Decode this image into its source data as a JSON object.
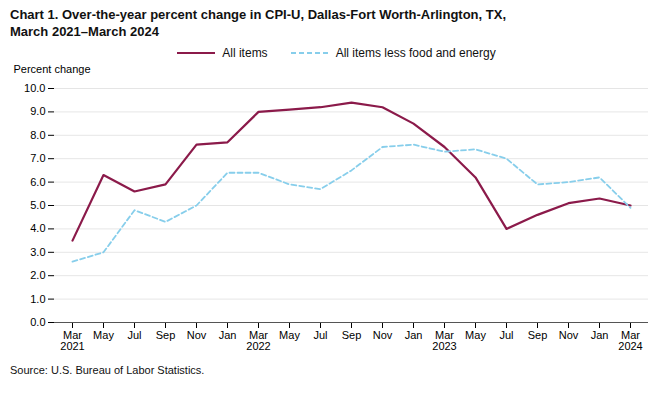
{
  "chart_data": {
    "type": "line",
    "title": "Chart 1. Over-the-year percent change in CPI-U, Dallas-Fort Worth-Arlington, TX,",
    "subtitle": "March 2021–March 2024",
    "y_label": "Percent change",
    "source": "Source: U.S. Bureau of Labor Statistics.",
    "categories": [
      "Mar\n2021",
      "May",
      "Jul",
      "Sep",
      "Nov",
      "Jan",
      "Mar\n2022",
      "May",
      "Jul",
      "Sep",
      "Nov",
      "Jan",
      "Mar\n2023",
      "May",
      "Jul",
      "Sep",
      "Nov",
      "Jan",
      "Mar\n2024"
    ],
    "series": [
      {
        "name": "All items",
        "color": "#8B1A4A",
        "line_style": "solid",
        "values": [
          3.5,
          6.3,
          5.6,
          5.9,
          7.6,
          7.7,
          9.0,
          9.1,
          9.2,
          9.4,
          9.2,
          8.5,
          7.5,
          6.2,
          4.0,
          4.6,
          5.1,
          5.3,
          5.0
        ]
      },
      {
        "name": "All items less food and energy",
        "color": "#87CEEB",
        "line_style": "dashed",
        "values": [
          2.6,
          3.0,
          4.8,
          4.3,
          5.0,
          6.4,
          6.4,
          5.9,
          5.7,
          6.5,
          7.5,
          7.6,
          7.3,
          7.4,
          7.0,
          5.9,
          6.0,
          6.2,
          4.9
        ]
      }
    ],
    "ylim": [
      0.0,
      10.0
    ],
    "yticks": [
      {
        "value": 0,
        "label": "0.0"
      },
      {
        "value": 1,
        "label": "1.0"
      },
      {
        "value": 2,
        "label": "2.0"
      },
      {
        "value": 3,
        "label": "3.0"
      },
      {
        "value": 4,
        "label": "4.0"
      },
      {
        "value": 5,
        "label": "5.0"
      },
      {
        "value": 6,
        "label": "6.0"
      },
      {
        "value": 7,
        "label": "7.0"
      },
      {
        "value": 8,
        "label": "8.0"
      },
      {
        "value": 9,
        "label": "9.0"
      },
      {
        "value": 10,
        "label": "10.0"
      }
    ],
    "grid": true,
    "legend": "top"
  }
}
